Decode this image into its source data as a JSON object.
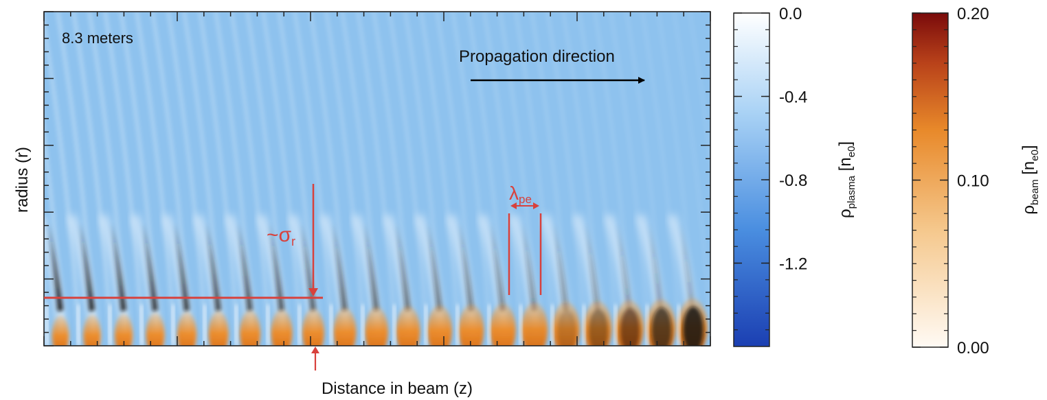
{
  "chart_data": [
    {
      "type": "heatmap",
      "annotations": {
        "distance": "8.3 meters",
        "direction": "Propagation direction",
        "sigma_prefix": "~σ",
        "sigma_sub": "r",
        "lambda_main": "λ",
        "lambda_sub": "pe"
      },
      "xlabel": "Distance in beam (z)",
      "ylabel": "radius (r)",
      "colors": {
        "background": "#8ec2ee",
        "wake_dark": "#0d0d10",
        "beam_hot": "#ef8a24",
        "annotation": "#d8413c"
      }
    },
    {
      "type": "heatmap",
      "colorbar": true,
      "label_main": "ρ",
      "label_sub": "plasma",
      "label_unit_open": " [n",
      "label_unit_sub": "e0",
      "label_unit_close": "]",
      "ticks": [
        "0.0",
        "-0.4",
        "-0.8",
        "-1.2"
      ],
      "tick_values": [
        0.0,
        -0.4,
        -0.8,
        -1.2
      ],
      "range": [
        -1.6,
        0.0
      ],
      "colormap": [
        "#1b3fb2",
        "#4a8ee0",
        "#a9d2f5",
        "#ffffff"
      ]
    },
    {
      "type": "heatmap",
      "colorbar": true,
      "label_main": "ρ",
      "label_sub": "beam",
      "label_unit_open": " [n",
      "label_unit_sub": "e0",
      "label_unit_close": "]",
      "ticks": [
        "0.20",
        "0.10",
        "0.00"
      ],
      "tick_values": [
        0.2,
        0.1,
        0.0
      ],
      "range": [
        0.0,
        0.2
      ],
      "colormap": [
        "#fffaf4",
        "#f5c88d",
        "#e8892a",
        "#b9421a",
        "#7a0b0b"
      ]
    }
  ]
}
